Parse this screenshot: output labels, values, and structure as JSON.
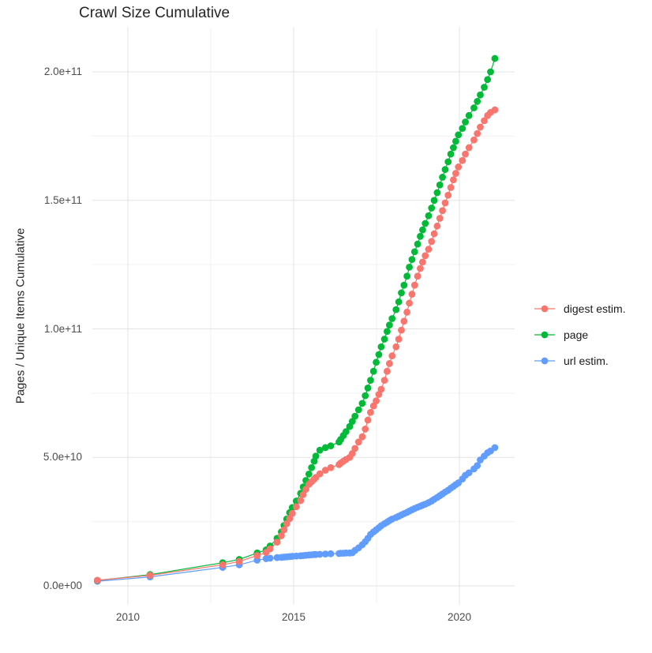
{
  "title": "Crawl Size Cumulative",
  "y_axis": {
    "title": "Pages / Unique Items Cumulative",
    "ticks": [
      {
        "label": "0.0e+00",
        "value_e10": 0
      },
      {
        "label": "5.0e+10",
        "value_e10": 5
      },
      {
        "label": "1.0e+11",
        "value_e10": 10
      },
      {
        "label": "1.5e+11",
        "value_e10": 15
      },
      {
        "label": "2.0e+11",
        "value_e10": 20
      }
    ],
    "minor_values_e10": [
      2.5,
      7.5,
      12.5,
      17.5
    ]
  },
  "x_axis": {
    "ticks": [
      {
        "label": "2010",
        "value": 2010
      },
      {
        "label": "2015",
        "value": 2015
      },
      {
        "label": "2020",
        "value": 2020
      }
    ],
    "minor_values": [
      2012.5,
      2017.5
    ]
  },
  "legend": {
    "items": [
      {
        "label": "digest estim.",
        "color": "#F8766D"
      },
      {
        "label": "page",
        "color": "#00BA38"
      },
      {
        "label": "url estim.",
        "color": "#619CFF"
      }
    ]
  },
  "colors": {
    "grid_major": "#e3e3e3",
    "grid_minor": "#f1f1f1",
    "digest": "#F8766D",
    "page": "#00BA38",
    "url": "#619CFF"
  },
  "chart_data": {
    "type": "scatter",
    "title": "Crawl Size Cumulative",
    "xlabel": "",
    "ylabel": "Pages / Unique Items Cumulative",
    "value_unit": "1e10",
    "x_range": [
      2008.9,
      2021.7
    ],
    "y_range_e10": [
      -1.2,
      21.8
    ],
    "grid": "on",
    "legend_position": "right",
    "series": [
      {
        "name": "digest estim.",
        "color": "#F8766D",
        "points": [
          [
            2009.08,
            0.22
          ],
          [
            2010.67,
            0.41
          ],
          [
            2012.86,
            0.82
          ],
          [
            2013.36,
            0.95
          ],
          [
            2013.9,
            1.18
          ],
          [
            2014.17,
            1.3
          ],
          [
            2014.29,
            1.44
          ],
          [
            2014.5,
            1.7
          ],
          [
            2014.63,
            1.95
          ],
          [
            2014.71,
            2.18
          ],
          [
            2014.79,
            2.42
          ],
          [
            2014.88,
            2.62
          ],
          [
            2014.96,
            2.82
          ],
          [
            2015.08,
            3.08
          ],
          [
            2015.21,
            3.32
          ],
          [
            2015.29,
            3.55
          ],
          [
            2015.37,
            3.76
          ],
          [
            2015.46,
            3.95
          ],
          [
            2015.54,
            4.05
          ],
          [
            2015.62,
            4.15
          ],
          [
            2015.67,
            4.22
          ],
          [
            2015.79,
            4.36
          ],
          [
            2015.96,
            4.5
          ],
          [
            2016.12,
            4.6
          ],
          [
            2016.37,
            4.72
          ],
          [
            2016.42,
            4.78
          ],
          [
            2016.5,
            4.85
          ],
          [
            2016.58,
            4.92
          ],
          [
            2016.69,
            5.0
          ],
          [
            2016.77,
            5.15
          ],
          [
            2016.85,
            5.35
          ],
          [
            2016.96,
            5.6
          ],
          [
            2017.07,
            5.8
          ],
          [
            2017.16,
            6.1
          ],
          [
            2017.24,
            6.45
          ],
          [
            2017.32,
            6.75
          ],
          [
            2017.41,
            7.0
          ],
          [
            2017.49,
            7.2
          ],
          [
            2017.57,
            7.45
          ],
          [
            2017.64,
            7.65
          ],
          [
            2017.74,
            8.0
          ],
          [
            2017.82,
            8.35
          ],
          [
            2017.89,
            8.65
          ],
          [
            2017.97,
            8.95
          ],
          [
            2018.09,
            9.3
          ],
          [
            2018.17,
            9.6
          ],
          [
            2018.25,
            9.95
          ],
          [
            2018.33,
            10.3
          ],
          [
            2018.42,
            10.65
          ],
          [
            2018.49,
            11.0
          ],
          [
            2018.57,
            11.35
          ],
          [
            2018.65,
            11.7
          ],
          [
            2018.74,
            12.05
          ],
          [
            2018.82,
            12.35
          ],
          [
            2018.89,
            12.6
          ],
          [
            2018.97,
            12.85
          ],
          [
            2019.07,
            13.1
          ],
          [
            2019.16,
            13.4
          ],
          [
            2019.24,
            13.7
          ],
          [
            2019.33,
            14.0
          ],
          [
            2019.41,
            14.3
          ],
          [
            2019.49,
            14.6
          ],
          [
            2019.57,
            14.9
          ],
          [
            2019.66,
            15.2
          ],
          [
            2019.74,
            15.5
          ],
          [
            2019.82,
            15.8
          ],
          [
            2019.89,
            16.05
          ],
          [
            2019.97,
            16.3
          ],
          [
            2020.09,
            16.55
          ],
          [
            2020.18,
            16.8
          ],
          [
            2020.29,
            17.05
          ],
          [
            2020.44,
            17.35
          ],
          [
            2020.54,
            17.6
          ],
          [
            2020.63,
            17.85
          ],
          [
            2020.75,
            18.1
          ],
          [
            2020.85,
            18.3
          ],
          [
            2020.94,
            18.42
          ],
          [
            2021.07,
            18.52
          ]
        ]
      },
      {
        "name": "page",
        "color": "#00BA38",
        "points": [
          [
            2009.08,
            0.21
          ],
          [
            2010.67,
            0.44
          ],
          [
            2012.86,
            0.9
          ],
          [
            2013.36,
            1.03
          ],
          [
            2013.9,
            1.28
          ],
          [
            2014.17,
            1.4
          ],
          [
            2014.29,
            1.55
          ],
          [
            2014.5,
            1.85
          ],
          [
            2014.63,
            2.1
          ],
          [
            2014.71,
            2.35
          ],
          [
            2014.79,
            2.6
          ],
          [
            2014.88,
            2.85
          ],
          [
            2014.96,
            3.05
          ],
          [
            2015.08,
            3.3
          ],
          [
            2015.21,
            3.6
          ],
          [
            2015.29,
            3.85
          ],
          [
            2015.37,
            4.1
          ],
          [
            2015.46,
            4.35
          ],
          [
            2015.54,
            4.6
          ],
          [
            2015.62,
            4.85
          ],
          [
            2015.67,
            5.05
          ],
          [
            2015.79,
            5.28
          ],
          [
            2015.96,
            5.38
          ],
          [
            2016.12,
            5.45
          ],
          [
            2016.37,
            5.6
          ],
          [
            2016.42,
            5.7
          ],
          [
            2016.5,
            5.85
          ],
          [
            2016.58,
            6.0
          ],
          [
            2016.69,
            6.2
          ],
          [
            2016.77,
            6.4
          ],
          [
            2016.85,
            6.6
          ],
          [
            2016.96,
            6.85
          ],
          [
            2017.07,
            7.1
          ],
          [
            2017.16,
            7.4
          ],
          [
            2017.24,
            7.7
          ],
          [
            2017.32,
            8.0
          ],
          [
            2017.41,
            8.35
          ],
          [
            2017.49,
            8.7
          ],
          [
            2017.57,
            9.0
          ],
          [
            2017.64,
            9.3
          ],
          [
            2017.74,
            9.6
          ],
          [
            2017.82,
            9.9
          ],
          [
            2017.89,
            10.15
          ],
          [
            2017.97,
            10.4
          ],
          [
            2018.09,
            10.75
          ],
          [
            2018.17,
            11.05
          ],
          [
            2018.25,
            11.4
          ],
          [
            2018.33,
            11.7
          ],
          [
            2018.42,
            12.05
          ],
          [
            2018.49,
            12.4
          ],
          [
            2018.57,
            12.7
          ],
          [
            2018.65,
            13.0
          ],
          [
            2018.74,
            13.3
          ],
          [
            2018.82,
            13.6
          ],
          [
            2018.89,
            13.85
          ],
          [
            2018.97,
            14.1
          ],
          [
            2019.07,
            14.4
          ],
          [
            2019.16,
            14.7
          ],
          [
            2019.24,
            15.0
          ],
          [
            2019.33,
            15.3
          ],
          [
            2019.41,
            15.6
          ],
          [
            2019.49,
            15.9
          ],
          [
            2019.57,
            16.2
          ],
          [
            2019.66,
            16.5
          ],
          [
            2019.74,
            16.8
          ],
          [
            2019.82,
            17.05
          ],
          [
            2019.89,
            17.3
          ],
          [
            2019.97,
            17.55
          ],
          [
            2020.09,
            17.8
          ],
          [
            2020.18,
            18.05
          ],
          [
            2020.29,
            18.3
          ],
          [
            2020.44,
            18.6
          ],
          [
            2020.54,
            18.85
          ],
          [
            2020.63,
            19.1
          ],
          [
            2020.75,
            19.4
          ],
          [
            2020.85,
            19.7
          ],
          [
            2020.94,
            20.0
          ],
          [
            2021.07,
            20.52
          ]
        ]
      },
      {
        "name": "url estim.",
        "color": "#619CFF",
        "points": [
          [
            2009.08,
            0.18
          ],
          [
            2010.67,
            0.35
          ],
          [
            2012.86,
            0.72
          ],
          [
            2013.36,
            0.82
          ],
          [
            2013.9,
            1.0
          ],
          [
            2014.17,
            1.06
          ],
          [
            2014.29,
            1.08
          ],
          [
            2014.5,
            1.1
          ],
          [
            2014.63,
            1.11
          ],
          [
            2014.71,
            1.12
          ],
          [
            2014.79,
            1.13
          ],
          [
            2014.88,
            1.14
          ],
          [
            2014.96,
            1.15
          ],
          [
            2015.08,
            1.16
          ],
          [
            2015.21,
            1.17
          ],
          [
            2015.29,
            1.18
          ],
          [
            2015.37,
            1.19
          ],
          [
            2015.46,
            1.2
          ],
          [
            2015.54,
            1.21
          ],
          [
            2015.62,
            1.22
          ],
          [
            2015.67,
            1.22
          ],
          [
            2015.79,
            1.23
          ],
          [
            2015.96,
            1.24
          ],
          [
            2016.12,
            1.25
          ],
          [
            2016.37,
            1.26
          ],
          [
            2016.42,
            1.27
          ],
          [
            2016.5,
            1.27
          ],
          [
            2016.58,
            1.28
          ],
          [
            2016.69,
            1.28
          ],
          [
            2016.77,
            1.29
          ],
          [
            2016.85,
            1.38
          ],
          [
            2016.96,
            1.48
          ],
          [
            2017.07,
            1.6
          ],
          [
            2017.16,
            1.72
          ],
          [
            2017.24,
            1.85
          ],
          [
            2017.32,
            2.0
          ],
          [
            2017.41,
            2.1
          ],
          [
            2017.49,
            2.18
          ],
          [
            2017.57,
            2.26
          ],
          [
            2017.64,
            2.34
          ],
          [
            2017.74,
            2.42
          ],
          [
            2017.82,
            2.48
          ],
          [
            2017.89,
            2.54
          ],
          [
            2017.97,
            2.6
          ],
          [
            2018.09,
            2.66
          ],
          [
            2018.17,
            2.71
          ],
          [
            2018.25,
            2.76
          ],
          [
            2018.33,
            2.81
          ],
          [
            2018.42,
            2.86
          ],
          [
            2018.49,
            2.91
          ],
          [
            2018.57,
            2.96
          ],
          [
            2018.65,
            3.01
          ],
          [
            2018.74,
            3.06
          ],
          [
            2018.82,
            3.1
          ],
          [
            2018.89,
            3.14
          ],
          [
            2018.97,
            3.18
          ],
          [
            2019.07,
            3.24
          ],
          [
            2019.16,
            3.3
          ],
          [
            2019.24,
            3.37
          ],
          [
            2019.33,
            3.44
          ],
          [
            2019.41,
            3.51
          ],
          [
            2019.49,
            3.58
          ],
          [
            2019.57,
            3.65
          ],
          [
            2019.66,
            3.72
          ],
          [
            2019.74,
            3.8
          ],
          [
            2019.82,
            3.87
          ],
          [
            2019.89,
            3.94
          ],
          [
            2019.97,
            4.01
          ],
          [
            2020.09,
            4.16
          ],
          [
            2020.18,
            4.3
          ],
          [
            2020.29,
            4.4
          ],
          [
            2020.44,
            4.55
          ],
          [
            2020.54,
            4.68
          ],
          [
            2020.63,
            4.9
          ],
          [
            2020.75,
            5.05
          ],
          [
            2020.85,
            5.18
          ],
          [
            2020.94,
            5.25
          ],
          [
            2021.07,
            5.38
          ]
        ]
      }
    ]
  }
}
